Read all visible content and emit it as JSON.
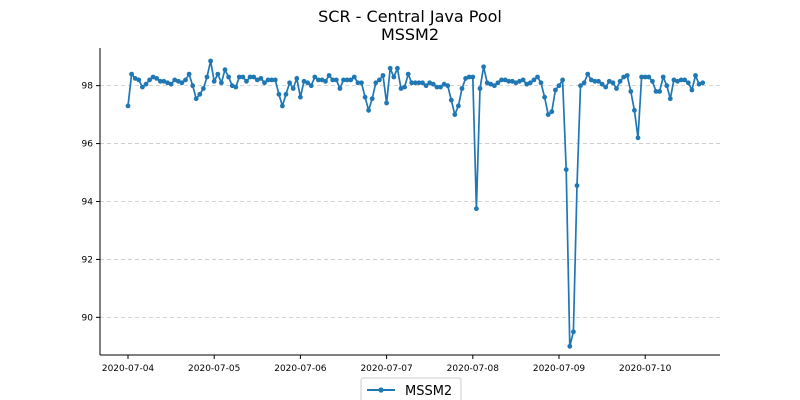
{
  "chart_data": {
    "type": "line",
    "title": "SCR - Central Java Pool",
    "subtitle": "MSSM2",
    "xlabel": "",
    "ylabel": "",
    "x_ticks": [
      "2020-07-04",
      "2020-07-05",
      "2020-07-06",
      "2020-07-07",
      "2020-07-08",
      "2020-07-09",
      "2020-07-10"
    ],
    "y_ticks": [
      "90",
      "92",
      "94",
      "96",
      "98"
    ],
    "xlim": [
      "2020-07-04",
      "2020-07-10T19:12"
    ],
    "ylim": [
      88.7,
      99.3
    ],
    "grid": "y-dashed",
    "legend": "bottom-center",
    "series": [
      {
        "name": "MSSM2",
        "color": "#1f77b4",
        "x_step_hours": 1,
        "x_start": "2020-07-04T00:00",
        "values": [
          97.3,
          98.4,
          98.25,
          98.2,
          97.95,
          98.05,
          98.2,
          98.3,
          98.25,
          98.15,
          98.15,
          98.1,
          98.05,
          98.2,
          98.15,
          98.1,
          98.2,
          98.4,
          98.0,
          97.55,
          97.7,
          97.9,
          98.3,
          98.85,
          98.15,
          98.4,
          98.1,
          98.55,
          98.3,
          98.0,
          97.95,
          98.3,
          98.3,
          98.15,
          98.3,
          98.3,
          98.2,
          98.25,
          98.1,
          98.2,
          98.2,
          98.2,
          97.7,
          97.3,
          97.7,
          98.1,
          97.9,
          98.25,
          97.6,
          98.15,
          98.1,
          98.0,
          98.3,
          98.2,
          98.2,
          98.15,
          98.35,
          98.2,
          98.2,
          97.9,
          98.2,
          98.2,
          98.2,
          98.3,
          98.1,
          98.1,
          97.6,
          97.15,
          97.55,
          98.1,
          98.2,
          98.35,
          97.4,
          98.6,
          98.3,
          98.6,
          97.9,
          97.95,
          98.4,
          98.1,
          98.1,
          98.1,
          98.1,
          98.0,
          98.1,
          98.05,
          97.95,
          97.95,
          98.05,
          98.0,
          97.5,
          97.0,
          97.3,
          97.9,
          98.25,
          98.3,
          98.3,
          93.75,
          97.9,
          98.65,
          98.1,
          98.05,
          98.0,
          98.1,
          98.2,
          98.2,
          98.15,
          98.15,
          98.1,
          98.15,
          98.2,
          98.05,
          98.1,
          98.2,
          98.3,
          98.1,
          97.6,
          97.0,
          97.1,
          97.85,
          98.0,
          98.2,
          95.1,
          89.0,
          89.5,
          94.55,
          98.0,
          98.1,
          98.4,
          98.2,
          98.15,
          98.15,
          98.05,
          97.95,
          98.15,
          98.1,
          97.9,
          98.15,
          98.3,
          98.35,
          97.8,
          97.15,
          96.2,
          98.3,
          98.3,
          98.3,
          98.15,
          97.8,
          97.8,
          98.3,
          98.0,
          97.55,
          98.2,
          98.15,
          98.2,
          98.2,
          98.1,
          97.85,
          98.35,
          98.05,
          98.1
        ]
      }
    ]
  }
}
